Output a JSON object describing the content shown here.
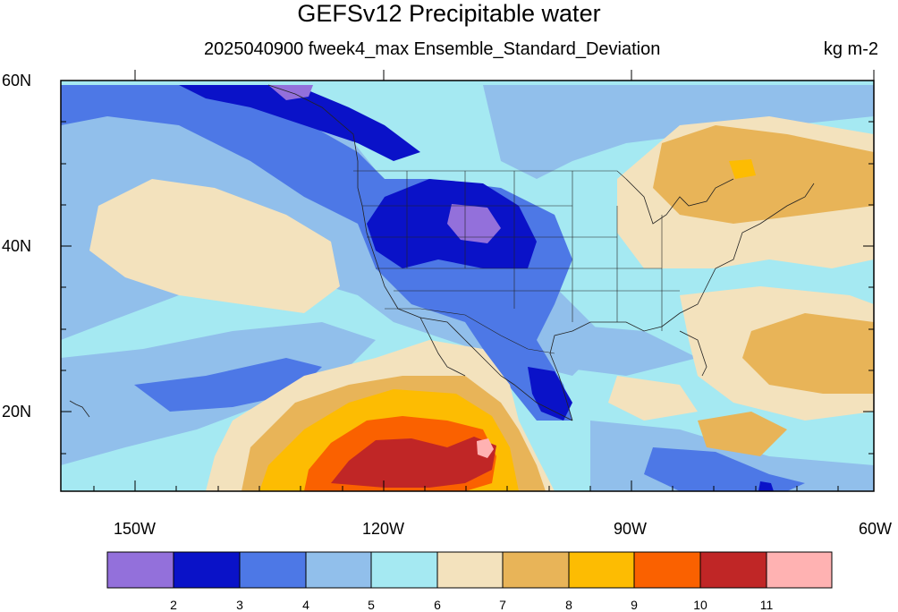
{
  "header": {
    "title": "GEFSv12 Precipitable water",
    "subtitle": "2025040900 fweek4_max Ensemble_Standard_Deviation",
    "units": "kg m-2"
  },
  "map": {
    "lat_labels": [
      "60N",
      "40N",
      "20N"
    ],
    "lon_labels": [
      "150W",
      "120W",
      "90W",
      "60W"
    ],
    "lat_range": [
      10,
      60
    ],
    "lon_range": [
      -160,
      -60
    ]
  },
  "colorbar": {
    "labels": [
      "2",
      "3",
      "4",
      "5",
      "6",
      "7",
      "8",
      "9",
      "10",
      "11"
    ],
    "colors": [
      "#9370db",
      "#0a12c8",
      "#4d78e6",
      "#91bfeb",
      "#a5e9f2",
      "#f3e2bd",
      "#e8b458",
      "#fdbc02",
      "#fa6100",
      "#c02626",
      "#ffb2b2"
    ]
  }
}
